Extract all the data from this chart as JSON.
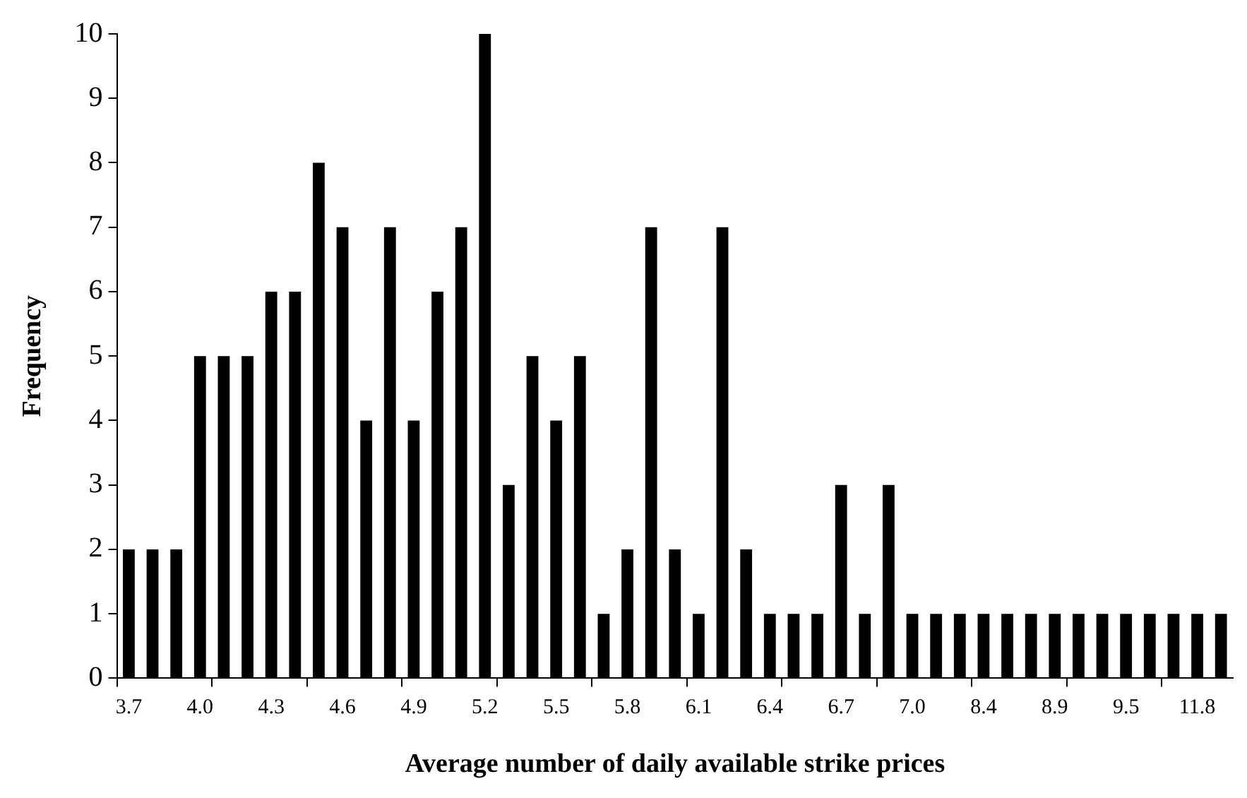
{
  "chart_data": {
    "type": "bar",
    "xlabel": "Average number of daily available strike prices",
    "ylabel": "Frequency",
    "categories": [
      "3.7",
      null,
      null,
      "4.0",
      null,
      null,
      "4.3",
      null,
      null,
      "4.6",
      null,
      null,
      "4.9",
      null,
      null,
      "5.2",
      null,
      null,
      "5.5",
      null,
      null,
      "5.8",
      null,
      null,
      "6.1",
      null,
      null,
      "6.4",
      null,
      null,
      "6.7",
      null,
      null,
      "7.0",
      null,
      null,
      "8.4",
      null,
      null,
      "8.9",
      null,
      null,
      "9.5",
      null,
      null,
      "11.8",
      null
    ],
    "values": [
      2,
      2,
      2,
      5,
      5,
      5,
      6,
      6,
      8,
      7,
      4,
      7,
      4,
      6,
      7,
      10,
      3,
      5,
      4,
      5,
      1,
      2,
      7,
      2,
      1,
      7,
      2,
      1,
      1,
      1,
      3,
      1,
      3,
      1,
      1,
      1,
      1,
      1,
      1,
      1,
      1,
      1,
      1,
      1,
      1,
      1,
      1
    ],
    "color": "#000000",
    "ylim": [
      0,
      10
    ],
    "yticks": [
      0,
      1,
      2,
      3,
      4,
      5,
      6,
      7,
      8,
      9,
      10
    ],
    "grid": false
  }
}
